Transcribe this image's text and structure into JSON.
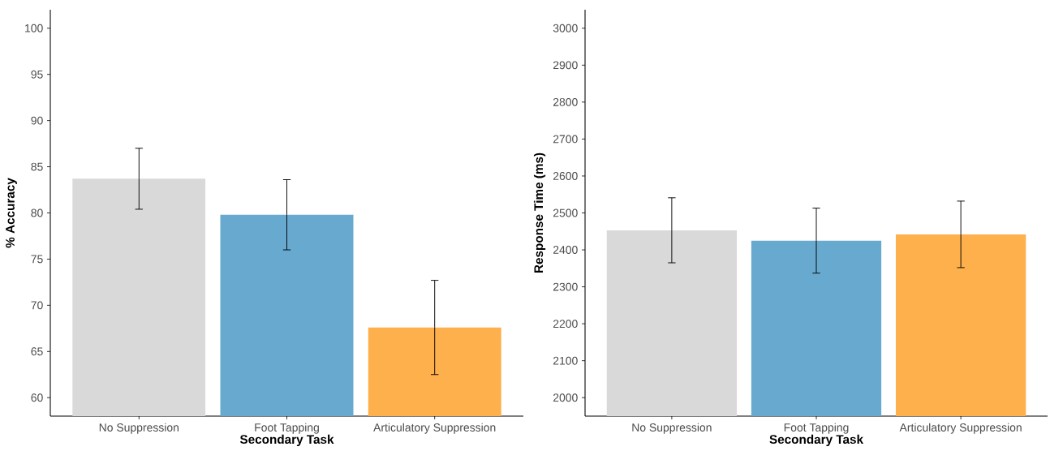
{
  "chart_data": [
    {
      "type": "bar",
      "categories": [
        "No Suppression",
        "Foot Tapping",
        "Articulatory Suppression"
      ],
      "xlabel": "Secondary Task",
      "ylabel": "% Accuracy",
      "values": [
        83.7,
        79.8,
        67.6
      ],
      "errors": [
        3.3,
        3.8,
        5.1
      ],
      "colors": [
        "#d9d9d9",
        "#67a9cf",
        "#fdb04b"
      ],
      "ylim": [
        58,
        102
      ],
      "yticks": [
        60,
        65,
        70,
        75,
        80,
        85,
        90,
        95,
        100
      ]
    },
    {
      "type": "bar",
      "categories": [
        "No Suppression",
        "Foot Tapping",
        "Articulatory Suppression"
      ],
      "xlabel": "Secondary Task",
      "ylabel": "Response Time (ms)",
      "values": [
        2453,
        2425,
        2442
      ],
      "errors": [
        88,
        88,
        90
      ],
      "colors": [
        "#d9d9d9",
        "#67a9cf",
        "#fdb04b"
      ],
      "ylim": [
        1950,
        3050
      ],
      "yticks": [
        2000,
        2100,
        2200,
        2300,
        2400,
        2500,
        2600,
        2700,
        2800,
        2900,
        3000
      ]
    }
  ]
}
